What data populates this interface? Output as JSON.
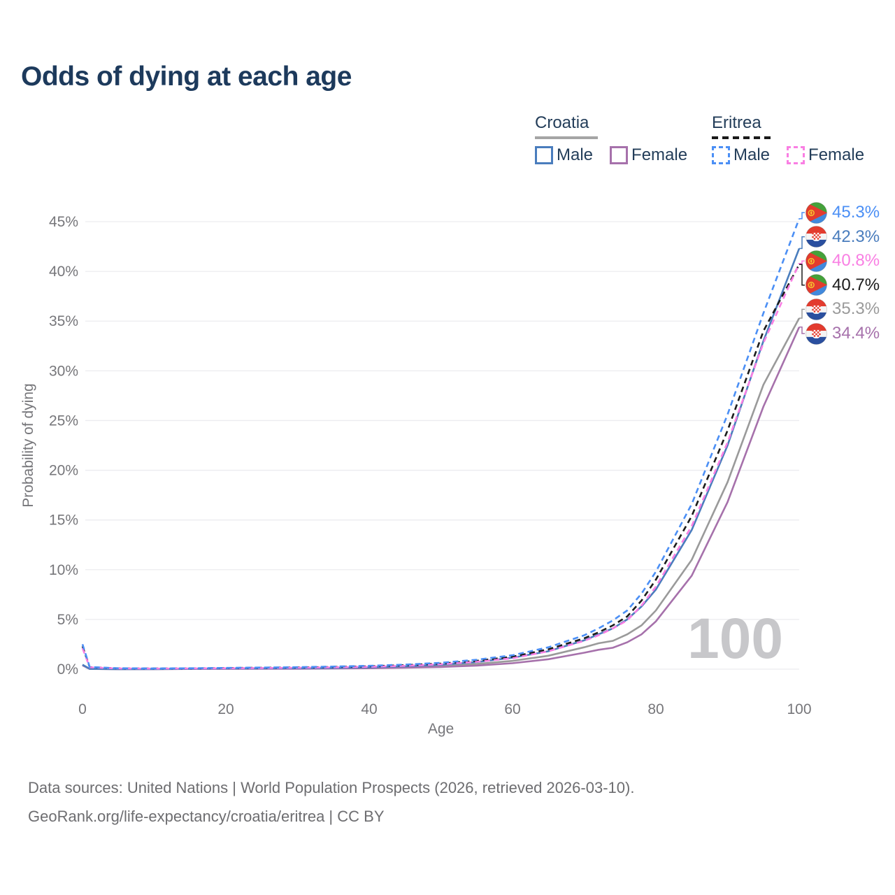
{
  "title": "Odds of dying at each age",
  "legend": {
    "croatia": {
      "title": "Croatia",
      "male": "Male",
      "female": "Female"
    },
    "eritrea": {
      "title": "Eritrea",
      "male": "Male",
      "female": "Female"
    }
  },
  "axes": {
    "y_title": "Probability of dying",
    "x_title": "Age",
    "y_tick_labels": [
      "0%",
      "5%",
      "10%",
      "15%",
      "20%",
      "25%",
      "30%",
      "35%",
      "40%",
      "45%"
    ],
    "x_tick_labels": [
      "0",
      "20",
      "40",
      "60",
      "80",
      "100"
    ]
  },
  "watermark": "100",
  "footer": {
    "line1": "Data sources: United Nations | World Population Prospects (2026, retrieved 2026-03-10).",
    "line2": "GeoRank.org/life-expectancy/croatia/eritrea | CC BY"
  },
  "colors": {
    "title_text": "#1d3a5c",
    "legend_text": "#233d59",
    "axis_text": "#76767a",
    "gridline": "#ececef",
    "watermark": "#c7c7ca",
    "footer_text": "#6d6d70",
    "croatia_underline": "#a5a5a5",
    "eritrea_underline": "#1a1a1a"
  },
  "chart_data": {
    "type": "line",
    "title": "Odds of dying at each age",
    "xlabel": "Age",
    "ylabel": "Probability of dying",
    "xlim": [
      0,
      100
    ],
    "ylim_percent": [
      0,
      46
    ],
    "grid": true,
    "legend_position": "top-right",
    "x": [
      0,
      1,
      5,
      10,
      15,
      20,
      25,
      30,
      35,
      40,
      45,
      50,
      55,
      60,
      65,
      70,
      72,
      74,
      76,
      78,
      80,
      85,
      90,
      95,
      100
    ],
    "series": [
      {
        "name": "Croatia Total",
        "country": "Croatia",
        "sex": "Both",
        "style": "solid",
        "color": "#9a9a9a",
        "flag": "croatia",
        "end_label": "35.3%",
        "values": [
          0.42,
          0.025,
          0.009,
          0.01,
          0.028,
          0.05,
          0.055,
          0.065,
          0.09,
          0.13,
          0.2,
          0.32,
          0.52,
          0.83,
          1.35,
          2.2,
          2.6,
          2.85,
          3.5,
          4.4,
          5.9,
          11.0,
          18.8,
          28.6,
          35.3
        ]
      },
      {
        "name": "Croatia Female",
        "country": "Croatia",
        "sex": "Female",
        "style": "solid",
        "color": "#a671ab",
        "flag": "croatia",
        "end_label": "34.4%",
        "values": [
          0.38,
          0.02,
          0.008,
          0.009,
          0.02,
          0.03,
          0.035,
          0.045,
          0.06,
          0.09,
          0.14,
          0.22,
          0.36,
          0.6,
          1.0,
          1.65,
          1.95,
          2.15,
          2.7,
          3.5,
          4.8,
          9.4,
          16.8,
          26.4,
          34.4
        ]
      },
      {
        "name": "Croatia Male",
        "country": "Croatia",
        "sex": "Male",
        "style": "solid",
        "color": "#4a7dbd",
        "flag": "croatia",
        "end_label": "42.3%",
        "values": [
          0.45,
          0.03,
          0.01,
          0.012,
          0.035,
          0.07,
          0.08,
          0.09,
          0.12,
          0.18,
          0.28,
          0.44,
          0.72,
          1.15,
          1.8,
          2.9,
          3.5,
          4.1,
          5.0,
          6.3,
          8.0,
          14.0,
          22.5,
          33.0,
          42.3
        ]
      },
      {
        "name": "Eritrea Total",
        "country": "Eritrea",
        "sex": "Both",
        "style": "dashed",
        "color": "#1c1c1c",
        "flag": "eritrea",
        "end_label": "40.7%",
        "values": [
          2.3,
          0.2,
          0.08,
          0.06,
          0.08,
          0.11,
          0.14,
          0.17,
          0.22,
          0.29,
          0.4,
          0.56,
          0.84,
          1.25,
          2.0,
          3.1,
          3.7,
          4.4,
          5.3,
          6.9,
          9.0,
          15.4,
          24.0,
          34.0,
          40.7
        ]
      },
      {
        "name": "Eritrea Female",
        "country": "Eritrea",
        "sex": "Female",
        "style": "dashed",
        "color": "#f97fe3",
        "flag": "eritrea",
        "end_label": "40.8%",
        "values": [
          2.1,
          0.18,
          0.07,
          0.055,
          0.07,
          0.09,
          0.11,
          0.14,
          0.18,
          0.24,
          0.34,
          0.49,
          0.74,
          1.1,
          1.8,
          2.85,
          3.4,
          4.1,
          4.9,
          6.4,
          8.3,
          14.4,
          22.8,
          32.8,
          40.8
        ]
      },
      {
        "name": "Eritrea Male",
        "country": "Eritrea",
        "sex": "Male",
        "style": "dashed",
        "color": "#4b8ff5",
        "flag": "eritrea",
        "end_label": "45.3%",
        "values": [
          2.5,
          0.22,
          0.09,
          0.07,
          0.09,
          0.13,
          0.16,
          0.2,
          0.26,
          0.34,
          0.46,
          0.64,
          0.95,
          1.4,
          2.2,
          3.4,
          4.1,
          4.9,
          5.9,
          7.6,
          9.8,
          16.6,
          25.6,
          35.8,
          45.3
        ]
      }
    ]
  }
}
